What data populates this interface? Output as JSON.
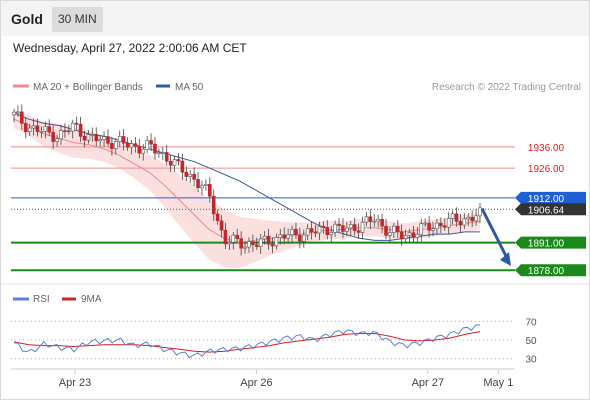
{
  "header": {
    "symbol": "Gold",
    "timeframe": "30 MIN"
  },
  "timestamp": "Wednesday, April 27, 2022 2:00:06 AM CET",
  "legend": {
    "items": [
      {
        "label": "MA 20 + Bollinger Bands",
        "color": "#f28c8c"
      },
      {
        "label": "MA 50",
        "color": "#2f5b95"
      }
    ],
    "copyright": "Research © 2022 Trading Central"
  },
  "rsi_legend": {
    "items": [
      {
        "label": "RSI",
        "color": "#5b7fd9"
      },
      {
        "label": "9MA",
        "color": "#d61f1f"
      }
    ]
  },
  "colors": {
    "resistance": "#f28c8c",
    "resistance_text": "#e02020",
    "support": "#1a8a1a",
    "pivot": "#1e5fd6",
    "last_price": "#333333",
    "arrow": "#2a5aa0",
    "band_fill": "#fbdada",
    "candle": "#c0282d"
  },
  "price_levels": [
    {
      "value": 1936.0,
      "label": "1936.00",
      "kind": "resistance"
    },
    {
      "value": 1926.0,
      "label": "1926.00",
      "kind": "resistance"
    },
    {
      "value": 1912.0,
      "label": "1912.00",
      "kind": "pivot"
    },
    {
      "value": 1906.64,
      "label": "1906.64",
      "kind": "last"
    },
    {
      "value": 1891.0,
      "label": "1891.00",
      "kind": "support"
    },
    {
      "value": 1878.0,
      "label": "1878.00",
      "kind": "support"
    }
  ],
  "rsi_levels": [
    "70",
    "50",
    "30"
  ],
  "x_axis": {
    "ticks": [
      {
        "label": "Apr 23",
        "frac": 0.127
      },
      {
        "label": "Apr 26",
        "frac": 0.487
      },
      {
        "label": "Apr 27",
        "frac": 0.827
      },
      {
        "label": "May 1",
        "frac": 0.967
      }
    ]
  },
  "chart_data": {
    "type": "line",
    "title": "",
    "xlabel": "",
    "ylabel": "",
    "ylim": [
      1872,
      1958
    ],
    "rsi_ylim": [
      20,
      80
    ],
    "series": [
      {
        "name": "MA 50",
        "values": [
          1952,
          1949,
          1947,
          1946,
          1944,
          1942,
          1941,
          1939,
          1937,
          1935,
          1933,
          1931,
          1929,
          1926,
          1923,
          1920,
          1916,
          1912,
          1908,
          1904,
          1900,
          1897,
          1895,
          1893,
          1892,
          1892,
          1893,
          1894,
          1895,
          1895,
          1896,
          1896
        ]
      },
      {
        "name": "MA 20",
        "values": [
          1949,
          1946,
          1942,
          1940,
          1938,
          1937,
          1935,
          1932,
          1928,
          1924,
          1918,
          1911,
          1904,
          1897,
          1893,
          1891,
          1892,
          1893,
          1894,
          1895,
          1896,
          1897,
          1897,
          1898,
          1898,
          1897,
          1896,
          1897,
          1898,
          1899,
          1900,
          1901
        ]
      },
      {
        "name": "RSI",
        "values": [
          47,
          36,
          46,
          42,
          40,
          48,
          49,
          50,
          44,
          46,
          40,
          36,
          33,
          38,
          40,
          41,
          44,
          48,
          52,
          54,
          50,
          56,
          60,
          57,
          58,
          48,
          44,
          47,
          52,
          56,
          62,
          65
        ]
      },
      {
        "name": "9MA",
        "values": [
          48,
          45,
          44,
          44,
          43,
          44,
          45,
          45,
          45,
          44,
          42,
          40,
          38,
          37,
          38,
          40,
          42,
          44,
          47,
          49,
          51,
          53,
          56,
          57,
          57,
          54,
          50,
          49,
          50,
          52,
          56,
          59
        ]
      }
    ],
    "candles_close": [
      1951,
      1945,
      1943,
      1941,
      1946,
      1940,
      1939,
      1938,
      1936,
      1936,
      1932,
      1926,
      1921,
      1913,
      1892,
      1891,
      1890,
      1892,
      1894,
      1895,
      1896,
      1898,
      1897,
      1899,
      1902,
      1896,
      1894,
      1897,
      1899,
      1901,
      1902,
      1904
    ]
  }
}
